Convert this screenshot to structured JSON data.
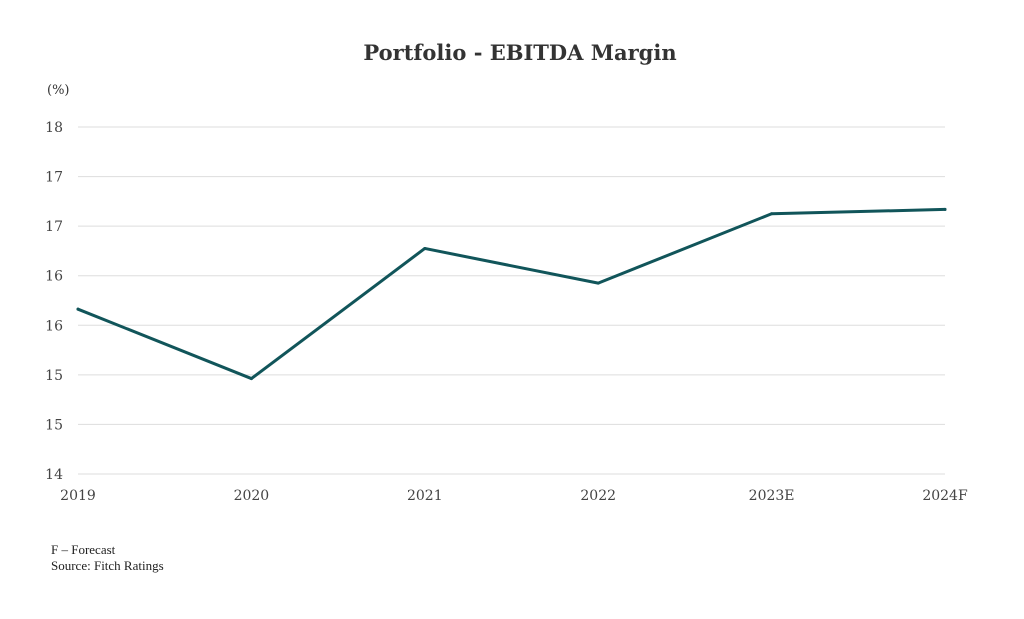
{
  "chart_data": {
    "type": "line",
    "title": "Portfolio - EBITDA Margin",
    "unit_label": "(%)",
    "categories": [
      "2019",
      "2020",
      "2021",
      "2022",
      "2023E",
      "2024F"
    ],
    "values": [
      15.9,
      15.1,
      16.6,
      16.2,
      17.0,
      17.05
    ],
    "y_tick_labels": [
      "14",
      "15",
      "15",
      "16",
      "16",
      "17",
      "17",
      "18"
    ],
    "ylim": [
      14,
      18
    ],
    "grid": true,
    "line_color": "#11555a",
    "grid_color": "#dddddd"
  },
  "footnotes": {
    "forecast": "F – Forecast",
    "source": "Source: Fitch Ratings"
  }
}
